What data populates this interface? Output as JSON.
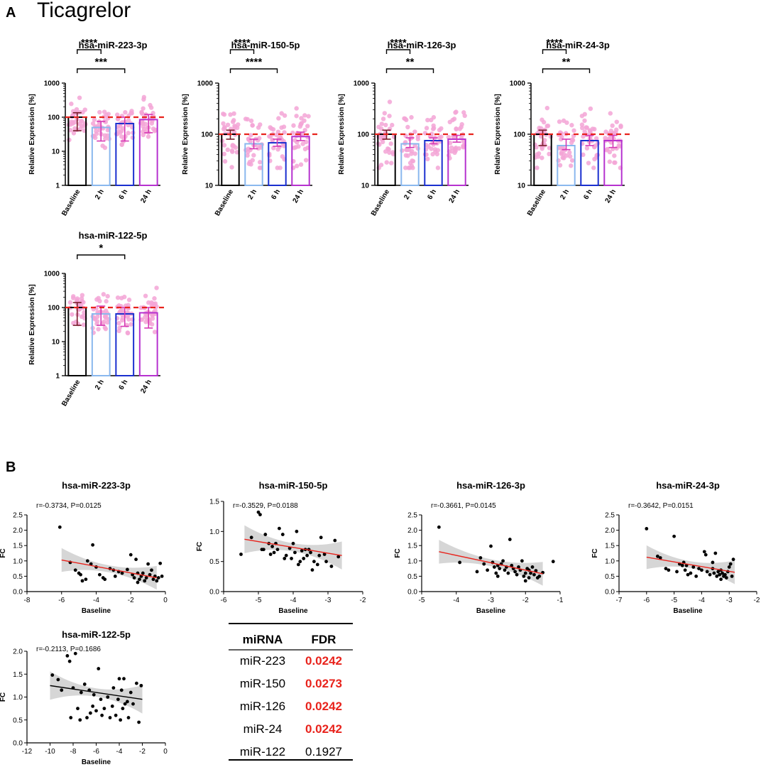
{
  "panel_a_label": "A",
  "drug_title": "Ticagrelor",
  "panel_b_label": "B",
  "chart_data": [
    {
      "type": "bar",
      "scale": "log",
      "title": "hsa-miR-223-3p",
      "ylabel": "Relative Expression [%]",
      "categories": [
        "Baseline",
        "2 h",
        "6 h",
        "24 h"
      ],
      "values": [
        100,
        50,
        65,
        85
      ],
      "error_low": [
        40,
        20,
        20,
        35
      ],
      "error_high": [
        135,
        75,
        100,
        120
      ],
      "ylim": [
        1,
        1000
      ],
      "yticks": [
        "1",
        "10",
        "100",
        "1000"
      ],
      "reference_line": 100,
      "significance": [
        {
          "from": "Baseline",
          "to": "2 h",
          "label": "****"
        },
        {
          "from": "Baseline",
          "to": "6 h",
          "label": "***"
        }
      ]
    },
    {
      "type": "bar",
      "scale": "log",
      "title": "hsa-miR-150-5p",
      "ylabel": "Relative Expression [%]",
      "categories": [
        "Baseline",
        "2 h",
        "6 h",
        "24 h"
      ],
      "values": [
        100,
        65,
        68,
        90
      ],
      "error_low": [
        80,
        52,
        58,
        75
      ],
      "error_high": [
        120,
        80,
        80,
        110
      ],
      "ylim": [
        10,
        1000
      ],
      "yticks": [
        "10",
        "100",
        "1000"
      ],
      "reference_line": 100,
      "significance": [
        {
          "from": "Baseline",
          "to": "2 h",
          "label": "****"
        },
        {
          "from": "Baseline",
          "to": "6 h",
          "label": "****"
        }
      ]
    },
    {
      "type": "bar",
      "scale": "log",
      "title": "hsa-miR-126-3p",
      "ylabel": "Relative Expression [%]",
      "categories": [
        "Baseline",
        "2 h",
        "6 h",
        "24 h"
      ],
      "values": [
        100,
        65,
        75,
        80
      ],
      "error_low": [
        80,
        55,
        65,
        70
      ],
      "error_high": [
        120,
        85,
        85,
        95
      ],
      "ylim": [
        10,
        1000
      ],
      "yticks": [
        "10",
        "100",
        "1000"
      ],
      "reference_line": 100,
      "significance": [
        {
          "from": "Baseline",
          "to": "2 h",
          "label": "****"
        },
        {
          "from": "Baseline",
          "to": "6 h",
          "label": "**"
        }
      ]
    },
    {
      "type": "bar",
      "scale": "log",
      "title": "hsa-miR-24-3p",
      "ylabel": "Relative Expression [%]",
      "categories": [
        "Baseline",
        "2 h",
        "6 h",
        "24 h"
      ],
      "values": [
        100,
        60,
        75,
        75
      ],
      "error_low": [
        60,
        50,
        60,
        55
      ],
      "error_high": [
        120,
        80,
        95,
        95
      ],
      "ylim": [
        10,
        1000
      ],
      "yticks": [
        "10",
        "100",
        "1000"
      ],
      "reference_line": 100,
      "significance": [
        {
          "from": "Baseline",
          "to": "2 h",
          "label": "****"
        },
        {
          "from": "Baseline",
          "to": "6 h",
          "label": "**"
        }
      ]
    },
    {
      "type": "bar",
      "scale": "log",
      "title": "hsa-miR-122-5p",
      "ylabel": "Relative Expression [%]",
      "categories": [
        "Baseline",
        "2 h",
        "6 h",
        "24 h"
      ],
      "values": [
        100,
        65,
        65,
        70
      ],
      "error_low": [
        30,
        30,
        28,
        25
      ],
      "error_high": [
        140,
        110,
        100,
        100
      ],
      "ylim": [
        1,
        1000
      ],
      "yticks": [
        "1",
        "10",
        "100",
        "1000"
      ],
      "reference_line": 100,
      "significance": [
        {
          "from": "Baseline",
          "to": "6 h",
          "label": "*"
        }
      ]
    },
    {
      "type": "scatter",
      "title": "hsa-miR-223-3p",
      "annotation": "r=-0.3734, P=0.0125",
      "xlabel": "Baseline",
      "ylabel": "FC",
      "xlim": [
        -8,
        0
      ],
      "ylim": [
        0,
        2.5
      ],
      "xticks": [
        "-8",
        "-6",
        "-4",
        "-2",
        "0"
      ],
      "yticks": [
        "0.0",
        "0.5",
        "1.0",
        "1.5",
        "2.0",
        "2.5"
      ],
      "fit": {
        "x": [
          -6,
          -0.5
        ],
        "y": [
          1.03,
          0.45
        ],
        "color": "#e8231c"
      },
      "points": [
        [
          -6.1,
          2.1
        ],
        [
          -4.2,
          1.52
        ],
        [
          -5.5,
          0.95
        ],
        [
          -5.2,
          0.7
        ],
        [
          -5.0,
          0.6
        ],
        [
          -4.8,
          0.35
        ],
        [
          -4.6,
          0.4
        ],
        [
          -4.5,
          1.0
        ],
        [
          -4.3,
          0.9
        ],
        [
          -4.0,
          0.8
        ],
        [
          -3.8,
          0.55
        ],
        [
          -3.6,
          0.45
        ],
        [
          -3.5,
          0.4
        ],
        [
          -3.2,
          0.75
        ],
        [
          -3.0,
          0.7
        ],
        [
          -2.7,
          0.65
        ],
        [
          -2.5,
          0.6
        ],
        [
          -2.2,
          0.72
        ],
        [
          -2.0,
          1.2
        ],
        [
          -1.9,
          0.55
        ],
        [
          -1.8,
          0.45
        ],
        [
          -1.7,
          1.05
        ],
        [
          -1.6,
          0.6
        ],
        [
          -1.5,
          0.4
        ],
        [
          -1.4,
          0.5
        ],
        [
          -1.3,
          0.6
        ],
        [
          -1.2,
          0.35
        ],
        [
          -1.1,
          0.45
        ],
        [
          -1.0,
          0.9
        ],
        [
          -0.9,
          0.55
        ],
        [
          -0.8,
          0.7
        ],
        [
          -0.7,
          0.4
        ],
        [
          -0.6,
          0.5
        ],
        [
          -0.5,
          0.35
        ],
        [
          -0.4,
          0.45
        ],
        [
          -0.3,
          0.92
        ],
        [
          -0.2,
          0.5
        ],
        [
          -1.6,
          0.3
        ],
        [
          -2.9,
          0.5
        ],
        [
          -4.9,
          0.55
        ]
      ]
    },
    {
      "type": "scatter",
      "title": "hsa-miR-150-5p",
      "annotation": "r=-0.3529, P=0.0188",
      "xlabel": "Baseline",
      "ylabel": "FC",
      "xlim": [
        -6,
        -2
      ],
      "ylim": [
        0,
        1.5
      ],
      "xticks": [
        "-6",
        "-5",
        "-4",
        "-3",
        "-2"
      ],
      "yticks": [
        "0.0",
        "0.5",
        "1.0",
        "1.5"
      ],
      "fit": {
        "x": [
          -5.4,
          -2.6
        ],
        "y": [
          0.87,
          0.6
        ],
        "color": "#e8231c"
      },
      "points": [
        [
          -5.5,
          0.62
        ],
        [
          -5.2,
          0.9
        ],
        [
          -5.0,
          1.32
        ],
        [
          -4.95,
          1.28
        ],
        [
          -4.9,
          0.7
        ],
        [
          -4.85,
          0.7
        ],
        [
          -4.8,
          0.95
        ],
        [
          -4.7,
          0.8
        ],
        [
          -4.6,
          0.75
        ],
        [
          -4.55,
          0.65
        ],
        [
          -4.5,
          0.8
        ],
        [
          -4.45,
          0.7
        ],
        [
          -4.4,
          1.05
        ],
        [
          -4.3,
          0.95
        ],
        [
          -4.25,
          0.55
        ],
        [
          -4.2,
          0.6
        ],
        [
          -4.1,
          0.72
        ],
        [
          -4.0,
          0.8
        ],
        [
          -3.95,
          0.65
        ],
        [
          -3.9,
          1.0
        ],
        [
          -3.85,
          0.45
        ],
        [
          -3.8,
          0.5
        ],
        [
          -3.75,
          0.68
        ],
        [
          -3.7,
          0.55
        ],
        [
          -3.65,
          0.7
        ],
        [
          -3.6,
          0.6
        ],
        [
          -3.55,
          0.7
        ],
        [
          -3.5,
          0.65
        ],
        [
          -3.4,
          0.5
        ],
        [
          -3.3,
          0.45
        ],
        [
          -3.25,
          0.6
        ],
        [
          -3.2,
          0.9
        ],
        [
          -3.1,
          0.62
        ],
        [
          -3.05,
          0.5
        ],
        [
          -2.9,
          0.42
        ],
        [
          -2.8,
          0.85
        ],
        [
          -2.7,
          0.58
        ],
        [
          -3.45,
          0.36
        ],
        [
          -4.05,
          0.55
        ],
        [
          -4.65,
          0.62
        ]
      ]
    },
    {
      "type": "scatter",
      "title": "hsa-miR-126-3p",
      "annotation": "r=-0.3661, P=0.0145",
      "xlabel": "Baseline",
      "ylabel": "FC",
      "xlim": [
        -5,
        -1
      ],
      "ylim": [
        0,
        2.5
      ],
      "xticks": [
        "-5",
        "-4",
        "-3",
        "-2",
        "-1"
      ],
      "yticks": [
        "0.0",
        "0.5",
        "1.0",
        "1.5",
        "2.0",
        "2.5"
      ],
      "fit": {
        "x": [
          -4.5,
          -1.5
        ],
        "y": [
          1.3,
          0.58
        ],
        "color": "#e8231c"
      },
      "points": [
        [
          -4.5,
          2.1
        ],
        [
          -3.9,
          0.95
        ],
        [
          -3.3,
          1.1
        ],
        [
          -3.2,
          0.9
        ],
        [
          -3.1,
          0.7
        ],
        [
          -3.0,
          1.48
        ],
        [
          -2.95,
          0.95
        ],
        [
          -2.9,
          0.8
        ],
        [
          -2.85,
          0.6
        ],
        [
          -2.8,
          0.85
        ],
        [
          -2.75,
          0.75
        ],
        [
          -2.7,
          0.9
        ],
        [
          -2.6,
          0.7
        ],
        [
          -2.55,
          0.8
        ],
        [
          -2.5,
          0.6
        ],
        [
          -2.45,
          1.7
        ],
        [
          -2.4,
          0.85
        ],
        [
          -2.35,
          0.75
        ],
        [
          -2.3,
          0.65
        ],
        [
          -2.25,
          0.55
        ],
        [
          -2.2,
          0.8
        ],
        [
          -2.15,
          0.7
        ],
        [
          -2.1,
          1.0
        ],
        [
          -2.05,
          0.5
        ],
        [
          -2.0,
          0.6
        ],
        [
          -1.95,
          0.75
        ],
        [
          -1.9,
          0.45
        ],
        [
          -1.85,
          0.6
        ],
        [
          -1.8,
          0.8
        ],
        [
          -1.75,
          0.55
        ],
        [
          -1.7,
          0.68
        ],
        [
          -1.6,
          0.5
        ],
        [
          -1.5,
          0.62
        ],
        [
          -1.2,
          0.98
        ],
        [
          -3.4,
          0.65
        ],
        [
          -2.65,
          1.0
        ],
        [
          -1.65,
          0.45
        ],
        [
          -2.0,
          0.35
        ],
        [
          -1.9,
          0.7
        ],
        [
          -2.8,
          0.5
        ]
      ]
    },
    {
      "type": "scatter",
      "title": "hsa-miR-24-3p",
      "annotation": "r=-0.3642, P=0.0151",
      "xlabel": "Baseline",
      "ylabel": "FC",
      "xlim": [
        -7,
        -2
      ],
      "ylim": [
        0,
        2.5
      ],
      "xticks": [
        "-7",
        "-6",
        "-5",
        "-4",
        "-3",
        "-2"
      ],
      "yticks": [
        "0.0",
        "0.5",
        "1.0",
        "1.5",
        "2.0",
        "2.5"
      ],
      "fit": {
        "x": [
          -6,
          -2.8
        ],
        "y": [
          1.12,
          0.63
        ],
        "color": "#e8231c"
      },
      "points": [
        [
          -6.0,
          2.05
        ],
        [
          -5.6,
          1.15
        ],
        [
          -5.5,
          1.1
        ],
        [
          -5.3,
          0.75
        ],
        [
          -5.2,
          0.7
        ],
        [
          -5.0,
          1.8
        ],
        [
          -4.9,
          0.65
        ],
        [
          -4.8,
          0.9
        ],
        [
          -4.7,
          0.85
        ],
        [
          -4.65,
          0.95
        ],
        [
          -4.6,
          0.7
        ],
        [
          -4.55,
          0.85
        ],
        [
          -4.5,
          0.55
        ],
        [
          -4.4,
          0.6
        ],
        [
          -4.3,
          0.8
        ],
        [
          -4.1,
          0.75
        ],
        [
          -4.0,
          0.7
        ],
        [
          -3.9,
          1.3
        ],
        [
          -3.85,
          1.2
        ],
        [
          -3.8,
          0.65
        ],
        [
          -3.7,
          0.55
        ],
        [
          -3.6,
          0.75
        ],
        [
          -3.55,
          0.6
        ],
        [
          -3.5,
          1.25
        ],
        [
          -3.45,
          0.5
        ],
        [
          -3.4,
          0.65
        ],
        [
          -3.35,
          0.55
        ],
        [
          -3.3,
          0.7
        ],
        [
          -3.25,
          0.6
        ],
        [
          -3.2,
          0.5
        ],
        [
          -3.15,
          0.55
        ],
        [
          -3.1,
          0.45
        ],
        [
          -3.05,
          0.65
        ],
        [
          -3.0,
          0.8
        ],
        [
          -2.95,
          0.9
        ],
        [
          -2.9,
          0.5
        ],
        [
          -2.85,
          1.05
        ],
        [
          -3.6,
          0.95
        ],
        [
          -4.2,
          0.5
        ],
        [
          -3.3,
          0.4
        ]
      ]
    },
    {
      "type": "scatter",
      "title": "hsa-miR-122-5p",
      "annotation": "r=-0.2113, P=0.1686",
      "xlabel": "Baseline",
      "ylabel": "FC",
      "xlim": [
        -12,
        0
      ],
      "ylim": [
        0,
        2.0
      ],
      "xticks": [
        "-12",
        "-10",
        "-8",
        "-6",
        "-4",
        "-2",
        "0"
      ],
      "yticks": [
        "0.0",
        "0.5",
        "1.0",
        "1.5",
        "2.0"
      ],
      "fit": {
        "x": [
          -10,
          -2
        ],
        "y": [
          1.25,
          0.95
        ],
        "color": "#000000"
      },
      "points": [
        [
          -9.8,
          1.48
        ],
        [
          -9.3,
          1.38
        ],
        [
          -9.0,
          1.15
        ],
        [
          -8.5,
          1.9
        ],
        [
          -8.3,
          1.78
        ],
        [
          -8.2,
          0.55
        ],
        [
          -8.0,
          1.2
        ],
        [
          -7.8,
          1.95
        ],
        [
          -7.6,
          0.75
        ],
        [
          -7.3,
          1.1
        ],
        [
          -7.0,
          1.28
        ],
        [
          -6.8,
          0.55
        ],
        [
          -6.6,
          1.15
        ],
        [
          -6.5,
          0.65
        ],
        [
          -6.3,
          0.8
        ],
        [
          -6.0,
          0.7
        ],
        [
          -5.8,
          1.62
        ],
        [
          -5.6,
          0.95
        ],
        [
          -5.5,
          0.6
        ],
        [
          -5.3,
          0.75
        ],
        [
          -5.0,
          1.0
        ],
        [
          -4.8,
          0.55
        ],
        [
          -4.6,
          0.8
        ],
        [
          -4.5,
          1.2
        ],
        [
          -4.3,
          0.6
        ],
        [
          -4.1,
          0.95
        ],
        [
          -4.0,
          1.4
        ],
        [
          -3.9,
          0.5
        ],
        [
          -3.8,
          1.15
        ],
        [
          -3.7,
          0.75
        ],
        [
          -3.6,
          1.4
        ],
        [
          -3.5,
          0.85
        ],
        [
          -3.3,
          0.9
        ],
        [
          -3.2,
          0.55
        ],
        [
          -3.0,
          1.1
        ],
        [
          -2.8,
          0.85
        ],
        [
          -2.5,
          1.3
        ],
        [
          -2.3,
          0.45
        ],
        [
          -2.1,
          1.25
        ],
        [
          -7.4,
          0.5
        ],
        [
          -6.2,
          1.05
        ]
      ]
    }
  ],
  "fdr_table": {
    "headers": [
      "miRNA",
      "FDR"
    ],
    "rows": [
      {
        "mirna": "miR-223",
        "fdr": "0.0242",
        "significant": true
      },
      {
        "mirna": "miR-150",
        "fdr": "0.0273",
        "significant": true
      },
      {
        "mirna": "miR-126",
        "fdr": "0.0242",
        "significant": true
      },
      {
        "mirna": "miR-24",
        "fdr": "0.0242",
        "significant": true
      },
      {
        "mirna": "miR-122",
        "fdr": "0.1927",
        "significant": false
      }
    ]
  },
  "colors": {
    "baseline": "#000000",
    "h2": "#8ab8ee",
    "h6": "#1a2fcf",
    "h24": "#b632cf",
    "dots": "#f3a5d6",
    "reference": "#e8231c",
    "error_baseline": "#7a1e2c",
    "error_other": "#d63ab5",
    "ci_band": "#c8c8c8",
    "fdr_significant": "#e8231c"
  }
}
